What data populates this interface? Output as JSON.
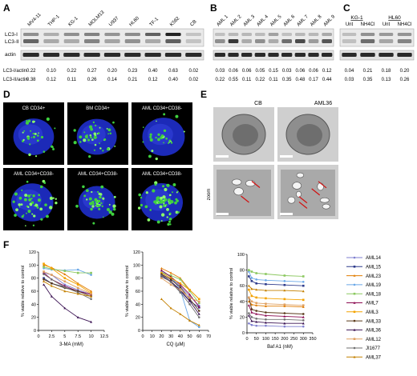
{
  "panels": {
    "A": {
      "letter": "A",
      "lanes": [
        "MV4-11",
        "THP-1",
        "KG-1",
        "MOLM13",
        "U937",
        "HL60",
        "TF-1",
        "K562",
        "CB"
      ],
      "band_labels": [
        "LC3-I",
        "LC3-II",
        "actin"
      ],
      "row1_label": "LC3-I/actin",
      "row1": [
        "0.22",
        "0.10",
        "0.22",
        "0.27",
        "0.20",
        "0.23",
        "0.40",
        "0.63",
        "0.02"
      ],
      "row2_label": "LC3-II/actin",
      "row2": [
        "0.38",
        "0.12",
        "0.11",
        "0.26",
        "0.14",
        "0.21",
        "0.12",
        "0.40",
        "0.02"
      ]
    },
    "B": {
      "letter": "B",
      "lanes": [
        "AML 1",
        "AML 2",
        "AML 3",
        "AML 4",
        "AML 5",
        "AML 6",
        "AML 7",
        "AML 8",
        "AML 9"
      ],
      "row1": [
        "0.03",
        "0.06",
        "0.06",
        "0.05",
        "0.15",
        "0.03",
        "0.06",
        "0.06",
        "0.12"
      ],
      "row2": [
        "0.22",
        "0.55",
        "0.11",
        "0.22",
        "0.11",
        "0.35",
        "0.48",
        "0.17",
        "0.44"
      ]
    },
    "C": {
      "letter": "C",
      "groups": [
        "KG-1",
        "HL60"
      ],
      "lanes": [
        "Unt",
        "NH4Cl",
        "Unt",
        "NH4Cl"
      ],
      "row1": [
        "0.04",
        "0.21",
        "0.18",
        "0.20"
      ],
      "row2": [
        "0.03",
        "0.35",
        "0.13",
        "0.26"
      ]
    },
    "D": {
      "letter": "D",
      "labels": [
        "CB CD34+",
        "BM CD34+",
        "AML CD34+CD38-",
        "AML CD34+CD38-",
        "AML CD34+CD38-",
        "AML CD34+CD38-"
      ]
    },
    "E": {
      "letter": "E",
      "col_labels": [
        "CB",
        "AML36"
      ],
      "row_label": "zoom"
    },
    "F": {
      "letter": "F"
    }
  },
  "chart_data": [
    {
      "type": "line",
      "xlabel": "3-MA (mM)",
      "ylabel": "% viable relative to control",
      "xlim": [
        0,
        12.5
      ],
      "ylim": [
        0,
        120
      ],
      "xticks": [
        "0",
        "2.5",
        "5",
        "7.5",
        "10",
        "12.5"
      ],
      "yticks": [
        "0",
        "20",
        "40",
        "60",
        "80",
        "100",
        "120"
      ],
      "x": [
        1,
        2.5,
        5,
        7.5,
        10
      ],
      "series": [
        {
          "name": "AML14",
          "color": "#7f7fcf",
          "values": [
            88,
            85,
            70,
            62,
            55
          ]
        },
        {
          "name": "AML15",
          "color": "#2e3c8c",
          "values": [
            80,
            72,
            66,
            60,
            55
          ]
        },
        {
          "name": "AML23",
          "color": "#e07b00",
          "values": [
            100,
            96,
            86,
            72,
            60
          ]
        },
        {
          "name": "AML19",
          "color": "#6aa8e8",
          "values": [
            95,
            93,
            92,
            93,
            85
          ]
        },
        {
          "name": "AML18",
          "color": "#8cc860",
          "values": [
            97,
            94,
            91,
            88,
            88
          ]
        },
        {
          "name": "AML7",
          "color": "#8b0a50",
          "values": [
            88,
            78,
            68,
            60,
            55
          ]
        },
        {
          "name": "AML3",
          "color": "#f3a300",
          "values": [
            102,
            95,
            80,
            70,
            57
          ]
        },
        {
          "name": "AML33",
          "color": "#5a3a1a",
          "values": [
            78,
            72,
            65,
            60,
            52
          ]
        },
        {
          "name": "AML36",
          "color": "#3c1454",
          "values": [
            70,
            52,
            34,
            20,
            13
          ]
        },
        {
          "name": "AML12",
          "color": "#e0a060",
          "values": [
            90,
            85,
            75,
            65,
            56
          ]
        },
        {
          "name": "JI1677",
          "color": "#707070",
          "values": [
            86,
            78,
            66,
            58,
            48
          ]
        },
        {
          "name": "AML37",
          "color": "#c48000",
          "values": [
            75,
            68,
            60,
            56,
            52
          ]
        }
      ]
    },
    {
      "type": "line",
      "xlabel": "CQ (µM)",
      "ylabel": "% viable relative to control",
      "xlim": [
        0,
        70
      ],
      "ylim": [
        0,
        120
      ],
      "xticks": [
        "0",
        "10",
        "20",
        "30",
        "40",
        "50",
        "60",
        "70"
      ],
      "yticks": [
        "0",
        "20",
        "40",
        "60",
        "80",
        "100",
        "120"
      ],
      "x": [
        20,
        30,
        40,
        50,
        60
      ],
      "series": [
        {
          "name": "AML14",
          "color": "#7f7fcf",
          "values": [
            88,
            80,
            68,
            52,
            38
          ]
        },
        {
          "name": "AML15",
          "color": "#2e3c8c",
          "values": [
            82,
            75,
            60,
            45,
            35
          ]
        },
        {
          "name": "AML23",
          "color": "#e07b00",
          "values": [
            95,
            88,
            80,
            62,
            48
          ]
        },
        {
          "name": "AML19",
          "color": "#6aa8e8",
          "values": [
            90,
            82,
            62,
            15,
            5
          ]
        },
        {
          "name": "AML18",
          "color": "#8cc860",
          "values": [
            88,
            84,
            78,
            60,
            42
          ]
        },
        {
          "name": "AML7",
          "color": "#8b0a50",
          "values": [
            92,
            82,
            70,
            55,
            36
          ]
        },
        {
          "name": "AML3",
          "color": "#f3a300",
          "values": [
            88,
            80,
            72,
            62,
            48
          ]
        },
        {
          "name": "AML33",
          "color": "#5a3a1a",
          "values": [
            86,
            78,
            66,
            48,
            30
          ]
        },
        {
          "name": "AML36",
          "color": "#3c1454",
          "values": [
            85,
            75,
            62,
            45,
            25
          ]
        },
        {
          "name": "AML12",
          "color": "#e0a060",
          "values": [
            80,
            70,
            62,
            50,
            44
          ]
        },
        {
          "name": "JI1677",
          "color": "#707070",
          "values": [
            84,
            74,
            58,
            40,
            20
          ]
        },
        {
          "name": "AML37",
          "color": "#c48000",
          "values": [
            48,
            34,
            25,
            15,
            8
          ]
        }
      ]
    },
    {
      "type": "line",
      "xlabel": "Baf A1 (nM)",
      "ylabel": "% viable relative to control",
      "xlim": [
        0,
        350
      ],
      "ylim": [
        0,
        100
      ],
      "xticks": [
        "0",
        "50",
        "100",
        "150",
        "200",
        "250",
        "300",
        "350"
      ],
      "yticks": [
        "0",
        "20",
        "40",
        "60",
        "80",
        "100"
      ],
      "x": [
        10,
        25,
        50,
        100,
        200,
        300
      ],
      "series": [
        {
          "name": "AML14",
          "color": "#7f7fcf",
          "values": [
            12,
            10,
            9,
            9,
            8,
            8
          ]
        },
        {
          "name": "AML15",
          "color": "#2e3c8c",
          "values": [
            72,
            66,
            63,
            62,
            61,
            60
          ]
        },
        {
          "name": "AML23",
          "color": "#e07b00",
          "values": [
            40,
            36,
            35,
            34,
            34,
            33
          ]
        },
        {
          "name": "AML19",
          "color": "#6aa8e8",
          "values": [
            78,
            70,
            68,
            67,
            66,
            65
          ]
        },
        {
          "name": "AML18",
          "color": "#8cc860",
          "values": [
            80,
            78,
            76,
            75,
            73,
            72
          ]
        },
        {
          "name": "AML7",
          "color": "#8b0a50",
          "values": [
            35,
            26,
            24,
            22,
            21,
            20
          ]
        },
        {
          "name": "AML3",
          "color": "#f3a300",
          "values": [
            55,
            47,
            45,
            44,
            43,
            42
          ]
        },
        {
          "name": "AML33",
          "color": "#5a3a1a",
          "values": [
            45,
            30,
            28,
            26,
            25,
            24
          ]
        },
        {
          "name": "AML36",
          "color": "#3c1454",
          "values": [
            22,
            15,
            14,
            13,
            12,
            12
          ]
        },
        {
          "name": "AML12",
          "color": "#e0a060",
          "values": [
            45,
            40,
            38,
            37,
            36,
            35
          ]
        },
        {
          "name": "JI1677",
          "color": "#707070",
          "values": [
            25,
            20,
            18,
            17,
            17,
            16
          ]
        },
        {
          "name": "AML37",
          "color": "#c48000",
          "values": [
            60,
            56,
            55,
            54,
            54,
            53
          ]
        }
      ]
    }
  ]
}
